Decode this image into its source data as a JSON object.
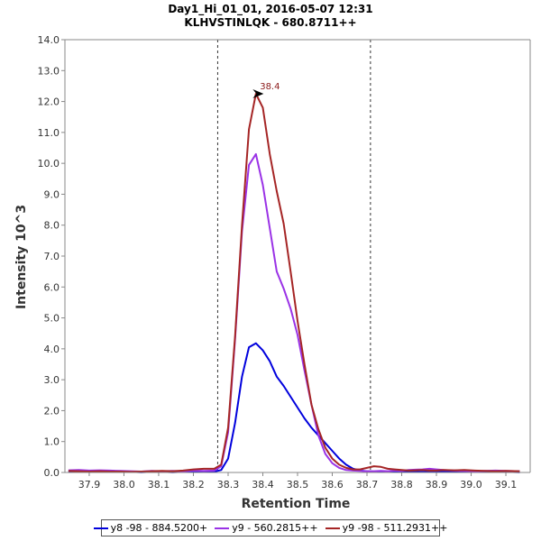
{
  "chart_data": {
    "type": "line",
    "title": "Day1_Hi_01_01, 2016-05-07 12:31",
    "subtitle": "KLHVSTINLQK - 680.8711++",
    "xlabel": "Retention Time",
    "ylabel": "Intensity 10^3",
    "xlim": [
      37.83,
      39.17
    ],
    "ylim": [
      0,
      14
    ],
    "x_ticks": [
      "37.9",
      "38.0",
      "38.1",
      "38.2",
      "38.3",
      "38.4",
      "38.5",
      "38.6",
      "38.7",
      "38.8",
      "38.9",
      "39.0",
      "39.1"
    ],
    "y_ticks": [
      "0.0",
      "1.0",
      "2.0",
      "3.0",
      "4.0",
      "5.0",
      "6.0",
      "7.0",
      "8.0",
      "9.0",
      "10.0",
      "11.0",
      "12.0",
      "13.0",
      "14.0"
    ],
    "integration_bounds": [
      38.27,
      38.71
    ],
    "peak_annotation": {
      "label": "38.4",
      "x": 38.41,
      "y": 12.25,
      "color": "#8b1a1a"
    },
    "series": [
      {
        "name": "y8 -98 - 884.5200+",
        "color": "#0000dd",
        "x": [
          37.84,
          37.87,
          37.9,
          37.93,
          37.96,
          37.99,
          38.02,
          38.05,
          38.08,
          38.11,
          38.14,
          38.17,
          38.2,
          38.23,
          38.26,
          38.28,
          38.3,
          38.32,
          38.34,
          38.36,
          38.38,
          38.4,
          38.42,
          38.44,
          38.46,
          38.48,
          38.5,
          38.52,
          38.54,
          38.56,
          38.58,
          38.6,
          38.62,
          38.64,
          38.66,
          38.68,
          38.7,
          38.72,
          38.74,
          38.76,
          38.78,
          38.8,
          38.82,
          38.84,
          38.86,
          38.88,
          38.9,
          38.92,
          38.95,
          38.98,
          39.01,
          39.04,
          39.07,
          39.1,
          39.14
        ],
        "y": [
          0.04,
          0.03,
          0.03,
          0.02,
          0.03,
          0.02,
          0.02,
          0.01,
          0.02,
          0.02,
          0.01,
          0.02,
          0.02,
          0.02,
          0.03,
          0.08,
          0.45,
          1.6,
          3.1,
          4.05,
          4.18,
          3.95,
          3.6,
          3.1,
          2.8,
          2.45,
          2.1,
          1.75,
          1.45,
          1.2,
          0.95,
          0.7,
          0.45,
          0.25,
          0.12,
          0.06,
          0.04,
          0.03,
          0.02,
          0.02,
          0.02,
          0.02,
          0.03,
          0.02,
          0.02,
          0.02,
          0.03,
          0.03,
          0.02,
          0.02,
          0.02,
          0.03,
          0.02,
          0.02,
          0.01
        ]
      },
      {
        "name": "y9 - 560.2815++",
        "color": "#9a32e6",
        "x": [
          37.84,
          37.87,
          37.9,
          37.93,
          37.96,
          37.99,
          38.02,
          38.05,
          38.08,
          38.11,
          38.14,
          38.17,
          38.2,
          38.23,
          38.26,
          38.28,
          38.3,
          38.32,
          38.34,
          38.36,
          38.38,
          38.4,
          38.42,
          38.44,
          38.46,
          38.48,
          38.5,
          38.52,
          38.54,
          38.56,
          38.58,
          38.6,
          38.62,
          38.64,
          38.66,
          38.68,
          38.7,
          38.72,
          38.74,
          38.76,
          38.78,
          38.8,
          38.82,
          38.84,
          38.86,
          38.88,
          38.9,
          38.92,
          38.95,
          38.98,
          39.01,
          39.04,
          39.07,
          39.1,
          39.14
        ],
        "y": [
          0.07,
          0.08,
          0.06,
          0.07,
          0.06,
          0.05,
          0.04,
          0.03,
          0.05,
          0.04,
          0.05,
          0.04,
          0.06,
          0.05,
          0.06,
          0.2,
          1.3,
          4.3,
          7.8,
          9.95,
          10.3,
          9.3,
          7.9,
          6.5,
          5.95,
          5.3,
          4.45,
          3.3,
          2.2,
          1.2,
          0.6,
          0.3,
          0.15,
          0.08,
          0.06,
          0.05,
          0.04,
          0.04,
          0.05,
          0.04,
          0.06,
          0.05,
          0.08,
          0.09,
          0.1,
          0.12,
          0.1,
          0.08,
          0.06,
          0.05,
          0.04,
          0.05,
          0.06,
          0.05,
          0.04
        ]
      },
      {
        "name": "y9 -98 - 511.2931++",
        "color": "#a52525",
        "x": [
          37.84,
          37.87,
          37.9,
          37.93,
          37.96,
          37.99,
          38.02,
          38.05,
          38.08,
          38.11,
          38.14,
          38.17,
          38.2,
          38.23,
          38.26,
          38.28,
          38.3,
          38.32,
          38.34,
          38.36,
          38.38,
          38.4,
          38.42,
          38.44,
          38.46,
          38.48,
          38.5,
          38.52,
          38.54,
          38.56,
          38.58,
          38.6,
          38.62,
          38.64,
          38.66,
          38.68,
          38.7,
          38.72,
          38.74,
          38.76,
          38.78,
          38.8,
          38.82,
          38.84,
          38.86,
          38.88,
          38.9,
          38.92,
          38.95,
          38.98,
          39.01,
          39.04,
          39.07,
          39.1,
          39.14
        ],
        "y": [
          0.05,
          0.04,
          0.03,
          0.04,
          0.03,
          0.03,
          0.02,
          0.03,
          0.04,
          0.05,
          0.04,
          0.06,
          0.1,
          0.12,
          0.12,
          0.25,
          1.45,
          4.4,
          8.0,
          11.1,
          12.25,
          11.8,
          10.3,
          9.1,
          8.05,
          6.5,
          4.9,
          3.5,
          2.2,
          1.4,
          0.8,
          0.45,
          0.25,
          0.15,
          0.1,
          0.1,
          0.15,
          0.2,
          0.18,
          0.12,
          0.1,
          0.08,
          0.06,
          0.07,
          0.08,
          0.06,
          0.06,
          0.08,
          0.07,
          0.08,
          0.06,
          0.05,
          0.04,
          0.05,
          0.04
        ]
      }
    ]
  }
}
